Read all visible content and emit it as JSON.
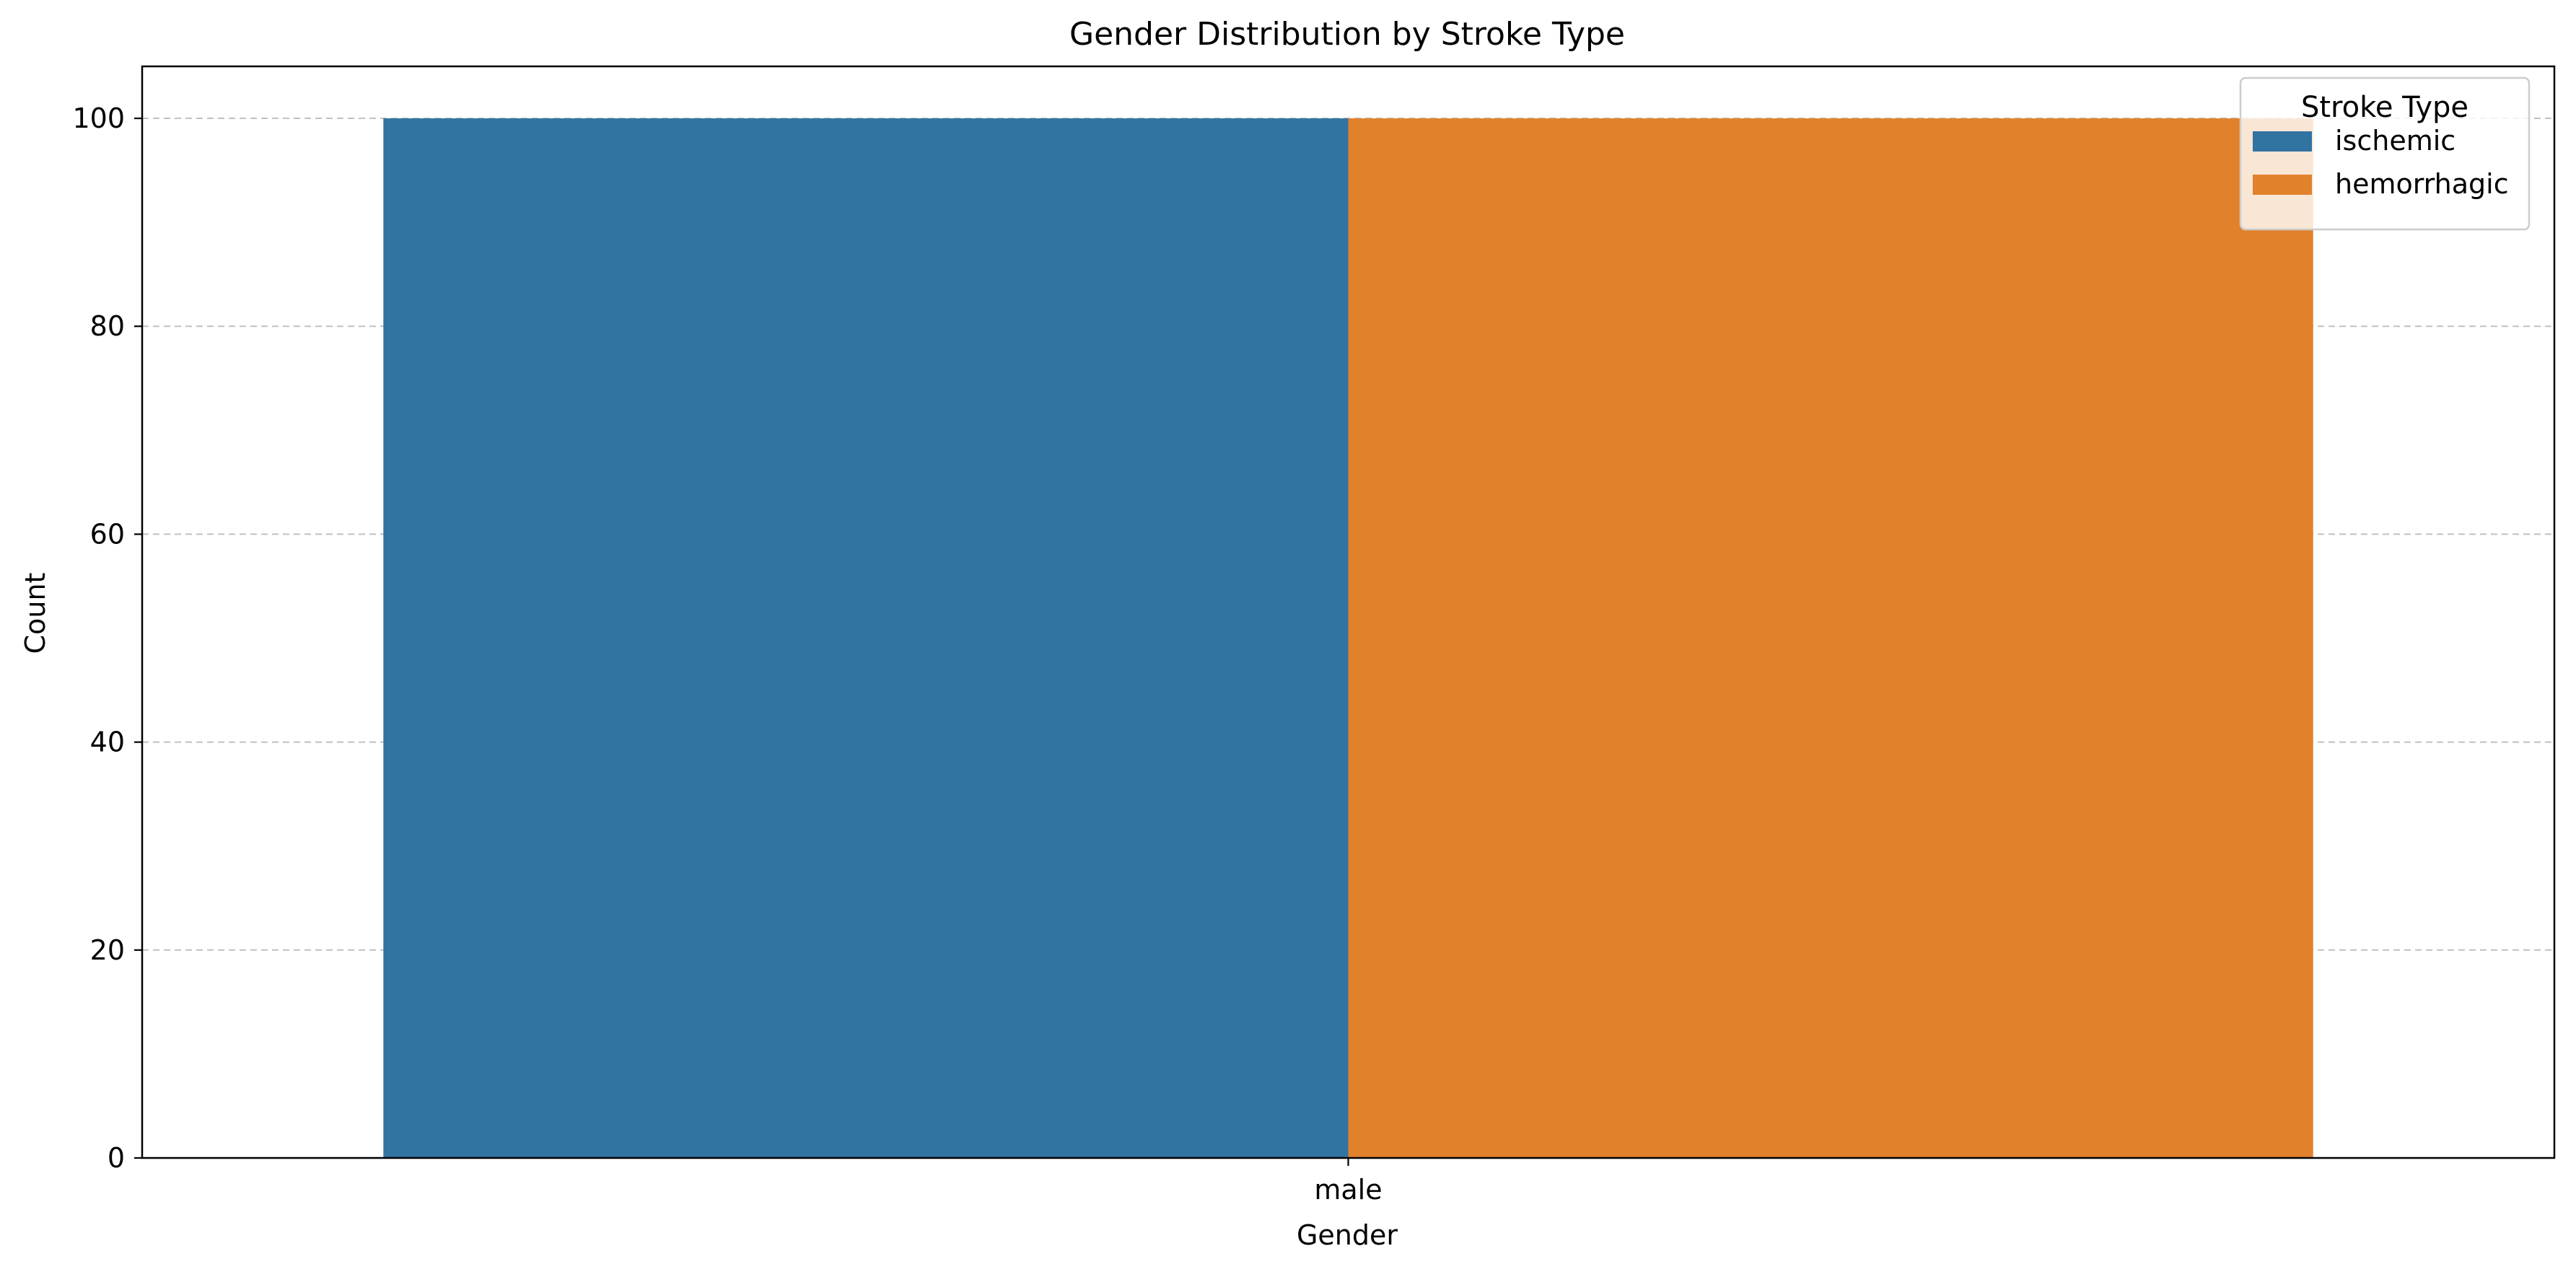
{
  "chart_data": {
    "type": "bar",
    "title": "Gender Distribution by Stroke Type",
    "xlabel": "Gender",
    "ylabel": "Count",
    "categories": [
      "male"
    ],
    "series": [
      {
        "name": "ischemic",
        "values": [
          100
        ],
        "color": "#3274a1"
      },
      {
        "name": "hemorrhagic",
        "values": [
          100
        ],
        "color": "#e1812c"
      }
    ],
    "ylim": [
      0,
      105
    ],
    "yticks": [
      0,
      20,
      40,
      60,
      80,
      100
    ],
    "grid": "horizontal-dashed",
    "legend": {
      "title": "Stroke Type",
      "placement": "top-right"
    }
  }
}
